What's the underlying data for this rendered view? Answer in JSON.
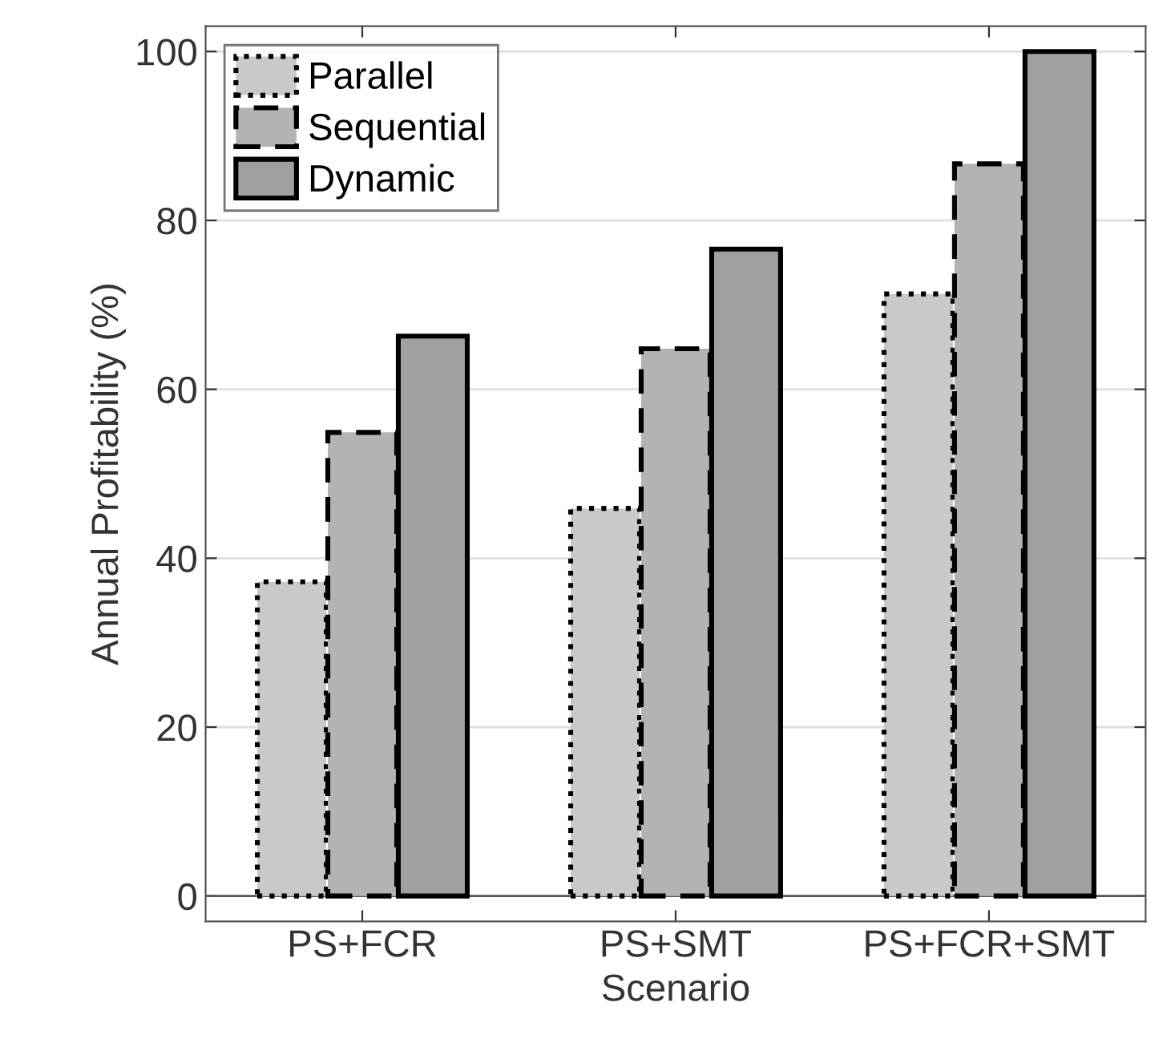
{
  "chart_data": {
    "type": "bar",
    "xlabel": "Scenario",
    "ylabel": "Annual Profitability (%)",
    "categories": [
      "PS+FCR",
      "PS+SMT",
      "PS+FCR+SMT"
    ],
    "series": [
      {
        "name": "Parallel",
        "color": "#c8c9c8",
        "values": [
          37.2,
          45.9,
          71.3
        ],
        "line_style": "dotted"
      },
      {
        "name": "Sequential",
        "color": "#b3b3b3",
        "values": [
          54.9,
          64.8,
          86.7
        ],
        "line_style": "dashed"
      },
      {
        "name": "Dynamic",
        "color": "#a0a0a0",
        "values": [
          66.3,
          76.6,
          100
        ],
        "line_style": "solid"
      }
    ],
    "ylim": [
      -3,
      103
    ],
    "yticks": [
      0,
      20,
      40,
      60,
      80,
      100
    ],
    "grid": "y",
    "legend": "top left"
  }
}
